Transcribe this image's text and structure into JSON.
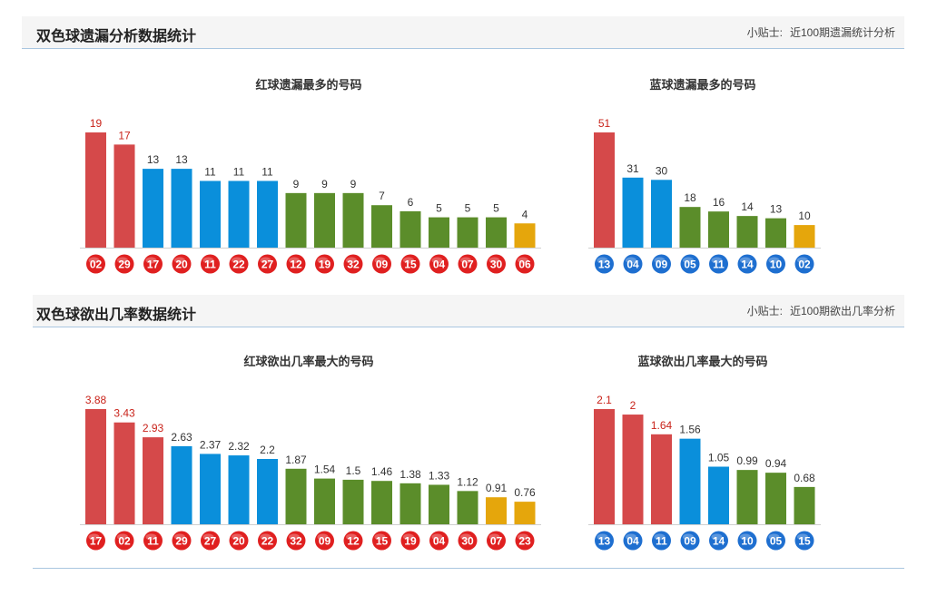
{
  "colors": {
    "red": "#d5494a",
    "blue": "#0a8fdb",
    "green": "#5b8d2a",
    "yellow": "#e5a60c",
    "label_red": "#c9231a",
    "label_dark": "#333333",
    "ball_red": "#e02020",
    "ball_blue": "#1e6fd0"
  },
  "section1": {
    "title": "双色球遗漏分析数据统计",
    "tip_label": "小贴士:",
    "tip_value": "近100期遗漏统计分析"
  },
  "section2": {
    "title": "双色球欲出几率数据统计",
    "tip_label": "小贴士:",
    "tip_value": "近100期欲出几率分析"
  },
  "chart_data": [
    {
      "type": "bar",
      "title": "红球遗漏最多的号码",
      "ball": "red",
      "categories": [
        "02",
        "29",
        "17",
        "20",
        "11",
        "22",
        "27",
        "12",
        "19",
        "32",
        "09",
        "15",
        "04",
        "07",
        "30",
        "06"
      ],
      "values": [
        19,
        17,
        13,
        13,
        11,
        11,
        11,
        9,
        9,
        9,
        7,
        6,
        5,
        5,
        5,
        4
      ],
      "value_labels": [
        "19",
        "17",
        "13",
        "13",
        "11",
        "11",
        "11",
        "9",
        "9",
        "9",
        "7",
        "6",
        "5",
        "5",
        "5",
        "4"
      ],
      "bar_colors": [
        "red",
        "red",
        "blue",
        "blue",
        "blue",
        "blue",
        "blue",
        "green",
        "green",
        "green",
        "green",
        "green",
        "green",
        "green",
        "green",
        "yellow"
      ],
      "ylim": [
        0,
        19
      ]
    },
    {
      "type": "bar",
      "title": "蓝球遗漏最多的号码",
      "ball": "blue",
      "categories": [
        "13",
        "04",
        "09",
        "05",
        "11",
        "14",
        "10",
        "02"
      ],
      "values": [
        51,
        31,
        30,
        18,
        16,
        14,
        13,
        10
      ],
      "value_labels": [
        "51",
        "31",
        "30",
        "18",
        "16",
        "14",
        "13",
        "10"
      ],
      "bar_colors": [
        "red",
        "blue",
        "blue",
        "green",
        "green",
        "green",
        "green",
        "yellow"
      ],
      "ylim": [
        0,
        51
      ]
    },
    {
      "type": "bar",
      "title": "红球欲出几率最大的号码",
      "ball": "red",
      "categories": [
        "17",
        "02",
        "11",
        "29",
        "27",
        "20",
        "22",
        "32",
        "09",
        "12",
        "15",
        "19",
        "04",
        "30",
        "07",
        "23"
      ],
      "values": [
        3.88,
        3.43,
        2.93,
        2.63,
        2.37,
        2.32,
        2.2,
        1.87,
        1.54,
        1.5,
        1.46,
        1.38,
        1.33,
        1.12,
        0.91,
        0.76
      ],
      "value_labels": [
        "3.88",
        "3.43",
        "2.93",
        "2.63",
        "2.37",
        "2.32",
        "2.2",
        "1.87",
        "1.54",
        "1.5",
        "1.46",
        "1.38",
        "1.33",
        "1.12",
        "0.91",
        "0.76"
      ],
      "bar_colors": [
        "red",
        "red",
        "red",
        "blue",
        "blue",
        "blue",
        "blue",
        "green",
        "green",
        "green",
        "green",
        "green",
        "green",
        "green",
        "yellow",
        "yellow"
      ],
      "ylim": [
        0,
        3.88
      ]
    },
    {
      "type": "bar",
      "title": "蓝球欲出几率最大的号码",
      "ball": "blue",
      "categories": [
        "13",
        "04",
        "11",
        "09",
        "14",
        "10",
        "05",
        "15"
      ],
      "values": [
        2.1,
        2,
        1.64,
        1.56,
        1.05,
        0.99,
        0.94,
        0.68
      ],
      "value_labels": [
        "2.1",
        "2",
        "1.64",
        "1.56",
        "1.05",
        "0.99",
        "0.94",
        "0.68"
      ],
      "bar_colors": [
        "red",
        "red",
        "red",
        "blue",
        "blue",
        "green",
        "green",
        "green"
      ],
      "ylim": [
        0,
        2.1
      ]
    }
  ]
}
